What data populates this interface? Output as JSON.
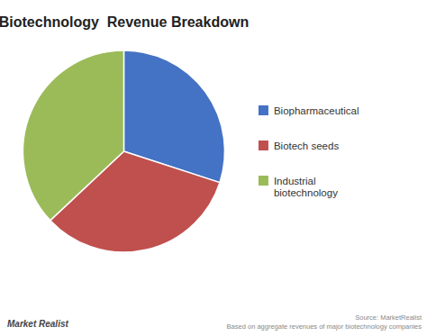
{
  "chart_data": {
    "type": "pie",
    "title": "Biotechnology  Revenue Breakdown",
    "categories": [
      "Biopharmaceutical",
      "Biotech seeds",
      "Industrial\nbiotechnology"
    ],
    "values": [
      30,
      33,
      37
    ],
    "colors": [
      "#4472C4",
      "#C0504D",
      "#9BBB59"
    ],
    "legend": "right",
    "annotations": [
      "Market Realist",
      "Source: MarketRealist",
      "Based on aggregate revenues of major biotechnology companies"
    ]
  }
}
